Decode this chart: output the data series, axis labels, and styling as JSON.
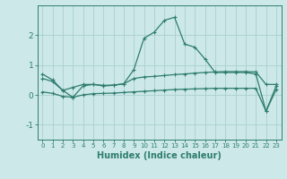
{
  "xlabel": "Humidex (Indice chaleur)",
  "x": [
    0,
    1,
    2,
    3,
    4,
    5,
    6,
    7,
    8,
    9,
    10,
    11,
    12,
    13,
    14,
    15,
    16,
    17,
    18,
    19,
    20,
    21,
    22,
    23
  ],
  "line1": [
    0.7,
    0.5,
    0.15,
    -0.08,
    0.3,
    0.35,
    0.3,
    0.32,
    0.37,
    0.85,
    1.9,
    2.1,
    2.5,
    2.6,
    1.7,
    1.6,
    1.2,
    0.75,
    0.75,
    0.75,
    0.75,
    0.7,
    -0.55,
    0.3
  ],
  "line2": [
    0.55,
    0.45,
    0.15,
    0.25,
    0.35,
    0.35,
    0.32,
    0.33,
    0.37,
    0.55,
    0.6,
    0.62,
    0.65,
    0.68,
    0.7,
    0.73,
    0.75,
    0.77,
    0.78,
    0.78,
    0.78,
    0.77,
    0.35,
    0.35
  ],
  "line3": [
    0.1,
    0.05,
    -0.05,
    -0.08,
    0.0,
    0.04,
    0.05,
    0.06,
    0.08,
    0.1,
    0.12,
    0.14,
    0.16,
    0.18,
    0.19,
    0.2,
    0.21,
    0.22,
    0.22,
    0.22,
    0.22,
    0.22,
    -0.55,
    0.18
  ],
  "line_color": "#2e7d6e",
  "bg_color": "#cce8e8",
  "grid_color": "#aacfcf",
  "ylim": [
    -1.5,
    3.0
  ],
  "yticks": [
    -1,
    0,
    1,
    2
  ],
  "xlim": [
    -0.5,
    23.5
  ]
}
